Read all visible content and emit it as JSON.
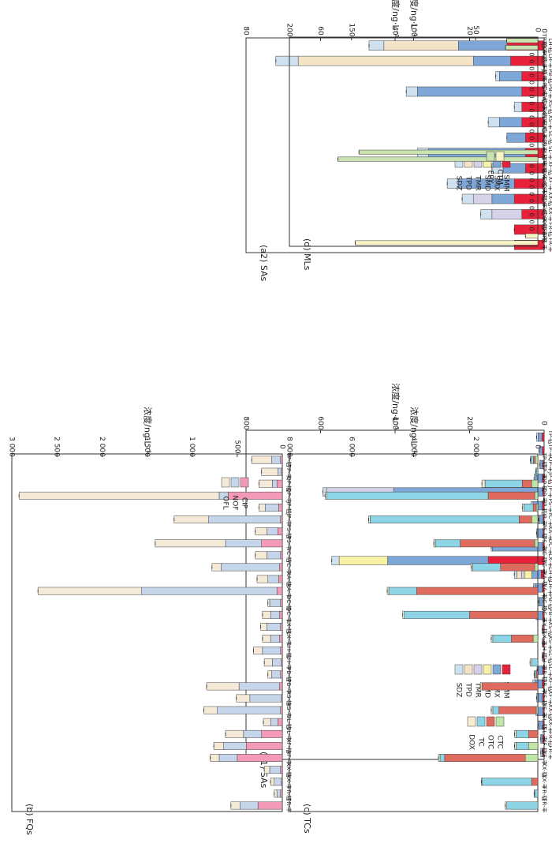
{
  "unit_label": "浓度/ng·L⁻¹",
  "colors": {
    "SMM": "#e8203a",
    "SMX": "#7ea7d8",
    "SMD": "#f7f2a6",
    "TMR": "#d6d2ea",
    "TPD": "#f3e4c8",
    "SDZ": "#cfe0ef",
    "CIP": "#f29ab8",
    "NOF": "#c6d6ea",
    "OFL": "#f5ead8",
    "CTC": "#bfe6a6",
    "OTC": "#de6b5e",
    "TC": "#8dd4e6",
    "DOX": "#f6ecd0",
    "CTM": "#f8f3c4",
    "ERY": "#c8e2b0"
  },
  "chart_data": [
    {
      "type": "bar",
      "stacked": true,
      "orientation": "rotated",
      "panel_label": "(a1) SAs",
      "ylabel": "浓度/ng·L⁻¹",
      "ylim": [
        0,
        800
      ],
      "yticks": [
        0,
        200,
        400,
        600,
        800
      ],
      "legend": [
        "SMM",
        "SMX",
        "SMD",
        "TMR",
        "TPD",
        "SDZ"
      ],
      "legend_position": "top-right",
      "categories": [
        "FR-丰",
        "FR-枯",
        "XX-丰",
        "XX-枯",
        "XF-丰",
        "XF-枯",
        "SL-丰",
        "SL-枯",
        "XS-丰",
        "XS-枯",
        "PB-丰",
        "PB-枯",
        "LH-丰",
        "LH-枯",
        "LX-丰",
        "DC-丰",
        "XA-丰",
        "YC-丰",
        "PS-丰",
        "JP-丰",
        "JP-枯",
        "QP-丰",
        "TP-丰",
        "TP-枯"
      ],
      "series": [
        {
          "name": "SMM",
          "values": [
            3,
            4,
            3,
            3,
            4,
            5,
            4,
            3,
            3,
            3,
            4,
            2,
            5,
            8,
            150,
            4,
            3,
            3,
            5,
            4,
            5,
            3,
            5,
            6
          ]
        },
        {
          "name": "SMX",
          "values": [
            3,
            3,
            10,
            15,
            12,
            20,
            12,
            0,
            0,
            0,
            15,
            10,
            20,
            25,
            270,
            135,
            15,
            10,
            25,
            400,
            18,
            6,
            6,
            10
          ]
        },
        {
          "name": "SMD",
          "values": [
            0,
            0,
            0,
            0,
            0,
            0,
            0,
            0,
            0,
            0,
            0,
            0,
            0,
            20,
            130,
            0,
            0,
            0,
            0,
            0,
            0,
            0,
            0,
            0
          ]
        },
        {
          "name": "TMR",
          "values": [
            0,
            0,
            0,
            0,
            0,
            0,
            0,
            0,
            0,
            0,
            0,
            0,
            0,
            8,
            0,
            0,
            0,
            0,
            0,
            180,
            0,
            0,
            0,
            0
          ]
        },
        {
          "name": "TPD",
          "values": [
            0,
            0,
            0,
            0,
            0,
            0,
            0,
            0,
            0,
            0,
            0,
            0,
            0,
            12,
            0,
            0,
            0,
            0,
            0,
            0,
            0,
            0,
            0,
            0
          ]
        },
        {
          "name": "SDZ",
          "values": [
            3,
            3,
            3,
            4,
            4,
            5,
            3,
            2,
            2,
            2,
            3,
            3,
            4,
            7,
            20,
            3,
            2,
            2,
            5,
            10,
            4,
            3,
            3,
            4
          ]
        }
      ]
    },
    {
      "type": "bar",
      "stacked": true,
      "orientation": "rotated",
      "panel_label": "(a2) SAs",
      "ylabel": "浓度/ng·L⁻¹",
      "ylim": [
        0,
        80
      ],
      "yticks": [
        0,
        20,
        40,
        60,
        80
      ],
      "legend": [
        "SMM",
        "SMX",
        "SMD",
        "TMR",
        "TPD",
        "SDZ"
      ],
      "legend_position": "top-right",
      "categories": [
        "FR-丰",
        "FR-枯",
        "XX-丰",
        "XX-枯",
        "XF-丰",
        "XF-枯",
        "SL-丰",
        "SL-枯",
        "XS-丰",
        "XS-枯",
        "PB-丰",
        "PB-枯",
        "LH-丰",
        "LH-枯"
      ],
      "series": [
        {
          "name": "SMM",
          "values": [
            8,
            8,
            6,
            8,
            8,
            5,
            5,
            5,
            6,
            6,
            6,
            6,
            9,
            10
          ]
        },
        {
          "name": "SMX",
          "values": [
            0,
            0,
            0,
            6,
            15,
            6,
            26,
            5,
            6,
            0,
            28,
            6,
            10,
            13
          ]
        },
        {
          "name": "SMD",
          "values": [
            0,
            0,
            0,
            0,
            0,
            0,
            0,
            0,
            0,
            0,
            0,
            0,
            0,
            0
          ]
        },
        {
          "name": "TMR",
          "values": [
            0,
            0,
            8,
            5,
            0,
            0,
            0,
            0,
            0,
            0,
            0,
            0,
            0,
            0
          ]
        },
        {
          "name": "TPD",
          "values": [
            0,
            0,
            0,
            0,
            0,
            0,
            0,
            0,
            0,
            0,
            0,
            0,
            47,
            20
          ]
        },
        {
          "name": "SDZ",
          "values": [
            0,
            0,
            3,
            3,
            3,
            3,
            3,
            0,
            3,
            2,
            3,
            1,
            6,
            4
          ]
        }
      ]
    },
    {
      "type": "bar",
      "stacked": true,
      "orientation": "rotated",
      "panel_label": "(b) FQs",
      "ylabel": "浓度/ng·L⁻¹",
      "ylim": [
        0,
        3000
      ],
      "yticks": [
        0,
        500,
        1000,
        1500,
        2000,
        2500,
        3000
      ],
      "ytick_labels": [
        "0",
        "500",
        "1 000",
        "1 500",
        "2 000",
        "2 500",
        "3 000"
      ],
      "legend": [
        "CIP",
        "NOF",
        "OFL"
      ],
      "legend_position": "top-left",
      "categories": [
        "FR-丰",
        "FR-枯",
        "XX-丰",
        "XX-枯",
        "XF-丰",
        "XF-枯",
        "SL-丰",
        "SL-枯",
        "XS-丰",
        "XS-枯",
        "PB-丰",
        "PB-枯",
        "LH-丰",
        "LH-枯",
        "LX-丰",
        "LX-枯",
        "DC-丰",
        "DC-枯",
        "XA-丰",
        "XA-枯",
        "YC-丰",
        "YC-枯",
        "PS-丰",
        "PS-枯",
        "JP-丰",
        "JP-枯",
        "QP-丰",
        "QP-枯",
        "TP-丰",
        "TP-枯"
      ],
      "series": [
        {
          "name": "CIP",
          "values": [
            270,
            20,
            10,
            20,
            500,
            400,
            230,
            50,
            20,
            10,
            30,
            20,
            10,
            20,
            30,
            20,
            30,
            20,
            60,
            40,
            30,
            20,
            230,
            50,
            20,
            40,
            600,
            60,
            10,
            20
          ]
        },
        {
          "name": "NOF",
          "values": [
            200,
            40,
            80,
            120,
            200,
            250,
            200,
            80,
            700,
            350,
            450,
            100,
            100,
            200,
            100,
            150,
            100,
            120,
            1500,
            120,
            650,
            150,
            400,
            120,
            800,
            150,
            100,
            50,
            40,
            100
          ]
        },
        {
          "name": "OFL",
          "values": [
            100,
            30,
            40,
            60,
            100,
            110,
            200,
            80,
            150,
            150,
            360,
            40,
            90,
            100,
            90,
            70,
            90,
            20,
            1150,
            120,
            100,
            130,
            780,
            130,
            380,
            70,
            2220,
            150,
            180,
            220
          ]
        }
      ]
    },
    {
      "type": "bar",
      "stacked": true,
      "orientation": "rotated",
      "panel_label": "(c) TCs",
      "ylabel": "浓度/ng·L⁻¹",
      "ylim": [
        0,
        8000
      ],
      "yticks": [
        0,
        2000,
        4000,
        6000,
        8000
      ],
      "ytick_labels": [
        "0",
        "2 000",
        "4 000",
        "6 000",
        "8 000"
      ],
      "legend": [
        "CTC",
        "OTC",
        "TC",
        "DOX"
      ],
      "legend_position": "top-right",
      "categories": [
        "FR-丰",
        "FR-枯",
        "XX-丰",
        "XX-枯",
        "XF-丰",
        "XF-枯",
        "SL-丰",
        "SL-枯",
        "XS-丰",
        "XS-枯",
        "PB-丰",
        "PB-枯",
        "LH-丰",
        "LH-枯",
        "LX-丰",
        "LX-枯",
        "DC-丰",
        "DC-枯",
        "XA-丰",
        "XA-枯",
        "YC-丰",
        "YC-枯",
        "PS-丰",
        "PS-枯",
        "JP-丰",
        "JP-枯",
        "QP-丰",
        "QP-枯",
        "TP-丰",
        "TP-枯"
      ],
      "series": [
        {
          "name": "CTC",
          "values": [
            0,
            0,
            0,
            0,
            400,
            300,
            0,
            0,
            50,
            0,
            0,
            0,
            0,
            0,
            150,
            0,
            0,
            0,
            0,
            0,
            100,
            0,
            100,
            0,
            200,
            50,
            100,
            200,
            0,
            80
          ]
        },
        {
          "name": "OTC",
          "values": [
            0,
            0,
            200,
            0,
            2600,
            0,
            300,
            0,
            1200,
            0,
            1800,
            50,
            0,
            0,
            700,
            0,
            2200,
            0,
            3900,
            0,
            1100,
            0,
            2400,
            0,
            400,
            100,
            1500,
            300,
            0,
            60
          ]
        },
        {
          "name": "TC",
          "values": [
            1000,
            100,
            1600,
            0,
            150,
            400,
            400,
            0,
            200,
            0,
            0,
            50,
            200,
            0,
            600,
            0,
            2100,
            0,
            900,
            0,
            900,
            0,
            800,
            0,
            4800,
            300,
            5200,
            1200,
            50,
            80
          ]
        },
        {
          "name": "DOX",
          "values": [
            50,
            20,
            20,
            0,
            50,
            50,
            50,
            0,
            50,
            0,
            50,
            20,
            50,
            0,
            50,
            0,
            50,
            0,
            50,
            0,
            50,
            0,
            50,
            0,
            50,
            50,
            50,
            100,
            20,
            20
          ]
        }
      ]
    },
    {
      "type": "bar",
      "stacked": true,
      "orientation": "rotated",
      "panel_label": "(d) MLs",
      "ylabel": "浓度/ng·L⁻¹",
      "ylim": [
        0,
        200
      ],
      "yticks": [
        0,
        50,
        100,
        150,
        200
      ],
      "legend": [
        "CTM",
        "ERY"
      ],
      "legend_position": "top-right",
      "categories": [
        "FR-丰",
        "FR-枯",
        "XX-丰",
        "XX-枯",
        "XF-丰",
        "XF-枯",
        "SL-丰",
        "SL-枯",
        "XS-丰",
        "XS-枯",
        "PB-丰",
        "PB-枯",
        "LH-丰",
        "LH-枯",
        "LX-丰",
        "LX-枯",
        "DC-丰",
        "DC-枯",
        "XA-丰",
        "XA-枯",
        "YC-丰",
        "YC-枯",
        "PS-丰",
        "PS-枯",
        "JP-丰",
        "JP-枯",
        "QP-丰",
        "QP-枯",
        "TP-丰",
        "TP-枯"
      ],
      "series": [
        {
          "name": "CTM",
          "values": [
            147,
            10,
            0,
            0,
            0,
            0,
            0,
            0,
            0,
            0,
            0,
            0,
            0,
            0,
            0,
            0,
            0,
            0,
            0,
            0,
            0,
            0,
            0,
            0,
            0,
            0,
            0,
            0,
            0,
            0
          ]
        },
        {
          "name": "ERY",
          "values": [
            0,
            0,
            0,
            0,
            0,
            0,
            0,
            0,
            0,
            0,
            0,
            0,
            161,
            144,
            0,
            0,
            0,
            0,
            0,
            0,
            0,
            0,
            0,
            0,
            0,
            0,
            0,
            0,
            26,
            25
          ]
        }
      ],
      "zero_markers": [
        "XX-丰",
        "XX-枯",
        "XF-丰",
        "XF-枯",
        "SL-丰",
        "SL-枯",
        "XS-丰",
        "XS-枯",
        "PB-丰",
        "PB-枯",
        "LX-丰",
        "LX-枯",
        "DC-丰",
        "DC-枯",
        "XA-丰",
        "XA-枯",
        "YC-丰",
        "YC-枯",
        "PS-丰",
        "PS-枯",
        "JP-丰",
        "JP-枯",
        "QP-丰",
        "QP-枯"
      ]
    }
  ]
}
